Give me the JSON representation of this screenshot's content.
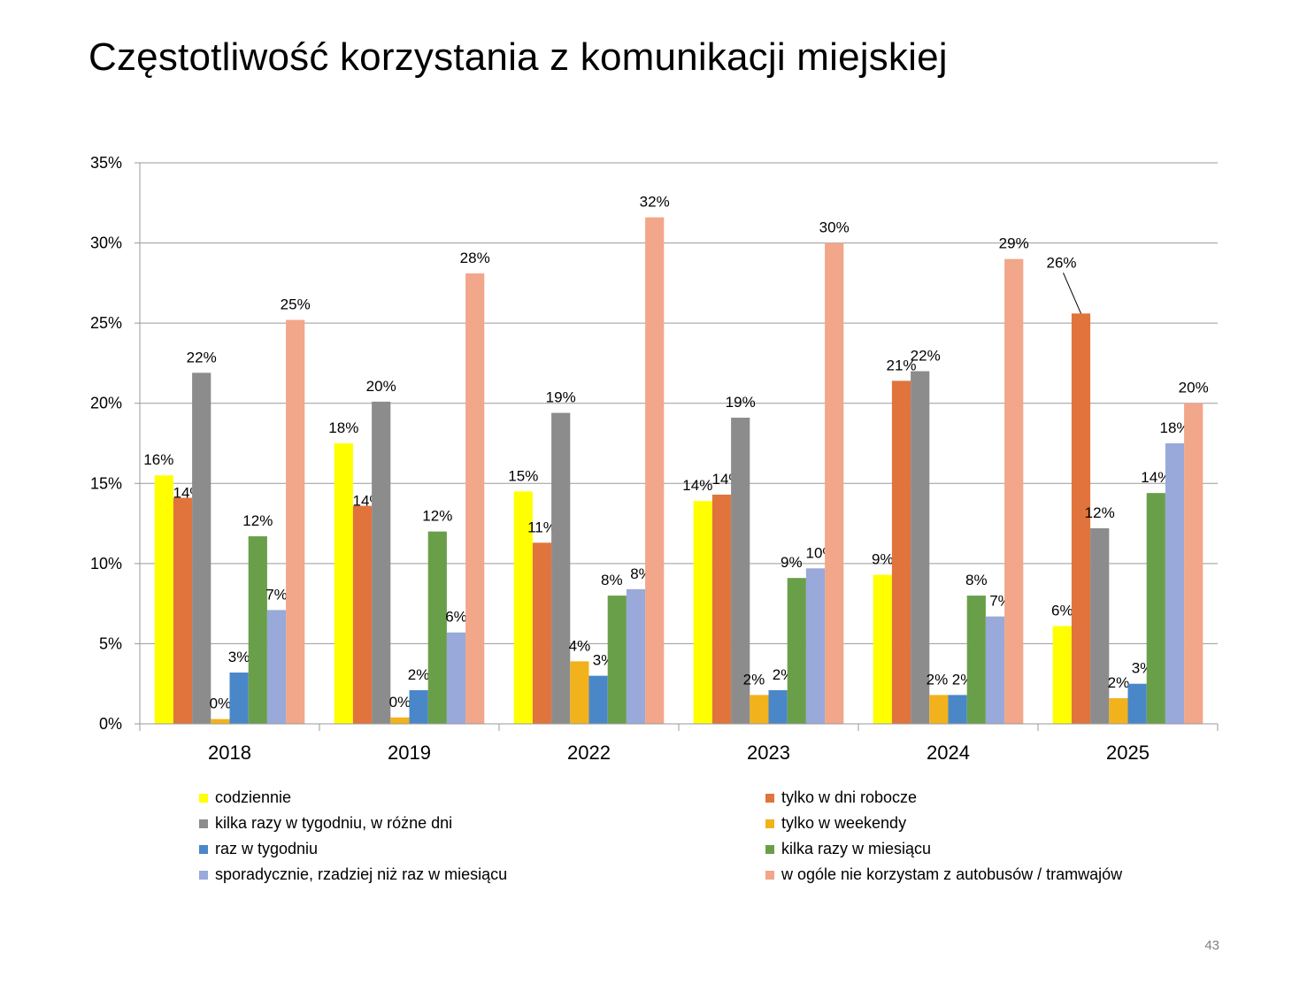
{
  "slide": {
    "title": "Częstotliwość korzystania z komunikacji miejskiej",
    "page_number": "43"
  },
  "chart_data": {
    "type": "bar",
    "categories": [
      "2018",
      "2019",
      "2022",
      "2023",
      "2024",
      "2025"
    ],
    "ylim": [
      0,
      35
    ],
    "yticks": [
      "0%",
      "5%",
      "10%",
      "15%",
      "20%",
      "25%",
      "30%",
      "35%"
    ],
    "grid": true,
    "legend_position": "bottom",
    "series": [
      {
        "name": "codziennie",
        "color": "#ffff00",
        "values": [
          15.5,
          17.5,
          14.5,
          13.9,
          9.3,
          6.1
        ],
        "labels": [
          "16%",
          "18%",
          "15%",
          "14%",
          "9%",
          "6%"
        ]
      },
      {
        "name": "tylko w dni robocze",
        "color": "#e0743c",
        "values": [
          14.1,
          13.6,
          11.3,
          14.3,
          21.4,
          25.6
        ],
        "labels": [
          "14%",
          "14%",
          "11%",
          "14%",
          "21%",
          "26%"
        ]
      },
      {
        "name": "kilka razy w tygodniu, w różne dni",
        "color": "#8c8c8c",
        "values": [
          21.9,
          20.1,
          19.4,
          19.1,
          22.0,
          12.2
        ],
        "labels": [
          "22%",
          "20%",
          "19%",
          "19%",
          "22%",
          "12%"
        ]
      },
      {
        "name": "tylko w weekendy",
        "color": "#f2b21c",
        "values": [
          0.3,
          0.4,
          3.9,
          1.8,
          1.8,
          1.6
        ],
        "labels": [
          "0%",
          "0%",
          "4%",
          "2%",
          "2%",
          "2%"
        ]
      },
      {
        "name": "raz w tygodniu",
        "color": "#4a87c8",
        "values": [
          3.2,
          2.1,
          3.0,
          2.1,
          1.8,
          2.5
        ],
        "labels": [
          "3%",
          "2%",
          "3%",
          "2%",
          "2%",
          "3%"
        ]
      },
      {
        "name": "kilka razy w miesiącu",
        "color": "#6a9f4a",
        "values": [
          11.7,
          12.0,
          8.0,
          9.1,
          8.0,
          14.4
        ],
        "labels": [
          "12%",
          "12%",
          "8%",
          "9%",
          "8%",
          "14%"
        ]
      },
      {
        "name": "sporadycznie, rzadziej niż raz w miesiącu",
        "color": "#98a9da",
        "values": [
          7.1,
          5.7,
          8.4,
          9.7,
          6.7,
          17.5
        ],
        "labels": [
          "7%",
          "6%",
          "8%",
          "10%",
          "7%",
          "18%"
        ]
      },
      {
        "name": "w ogóle nie korzystam z autobusów / tramwajów",
        "color": "#f2a68a",
        "values": [
          25.2,
          28.1,
          31.6,
          30.0,
          29.0,
          20.0
        ],
        "labels": [
          "25%",
          "28%",
          "32%",
          "30%",
          "29%",
          "20%"
        ]
      }
    ]
  }
}
